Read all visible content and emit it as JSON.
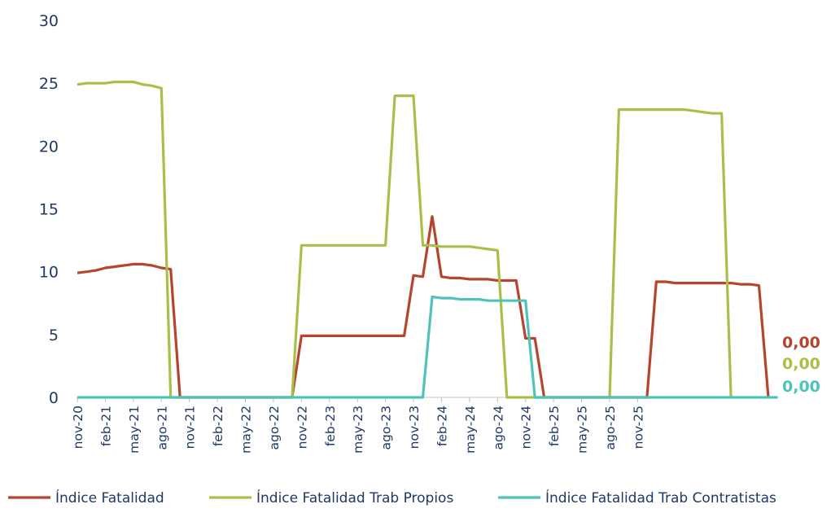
{
  "chart_data": {
    "type": "line",
    "xlabel": "",
    "ylabel": "",
    "ylim": [
      0,
      30
    ],
    "yticks": [
      "0",
      "5",
      "10",
      "15",
      "20",
      "25",
      "30"
    ],
    "x_start": "nov-20",
    "x_end": "nov-25",
    "xtick_labels": [
      "nov-20",
      "feb-21",
      "may-21",
      "ago-21",
      "nov-21",
      "feb-22",
      "may-22",
      "ago-22",
      "nov-22",
      "feb-23",
      "may-23",
      "ago-23",
      "nov-23",
      "feb-24",
      "may-24",
      "ago-24",
      "nov-24",
      "feb-25",
      "may-25",
      "ago-25",
      "nov-25"
    ],
    "grid": false,
    "legend_position": "bottom",
    "series": [
      {
        "name": "Índice Fatalidad",
        "color": "#b5452c",
        "values": [
          9.9,
          10.0,
          10.1,
          10.3,
          10.4,
          10.5,
          10.6,
          10.6,
          10.5,
          10.3,
          10.2,
          0,
          0,
          0,
          0,
          0,
          0,
          0,
          0,
          0,
          0,
          0,
          0,
          0,
          4.9,
          4.9,
          4.9,
          4.9,
          4.9,
          4.9,
          4.9,
          4.9,
          4.9,
          4.9,
          4.9,
          4.9,
          9.7,
          9.6,
          14.4,
          9.6,
          9.5,
          9.5,
          9.4,
          9.4,
          9.4,
          9.3,
          9.3,
          9.3,
          4.7,
          4.7,
          0,
          0,
          0,
          0,
          0,
          0,
          0,
          0,
          0,
          0,
          0,
          0,
          9.2,
          9.2,
          9.1,
          9.1,
          9.1,
          9.1,
          9.1,
          9.1,
          9.1,
          9.0,
          9.0,
          8.9,
          0
        ]
      },
      {
        "name": "Índice Fatalidad Trab Propios",
        "color": "#a8c04a",
        "values": [
          24.9,
          25.0,
          25.0,
          25.0,
          25.1,
          25.1,
          25.1,
          24.9,
          24.8,
          24.6,
          0,
          0,
          0,
          0,
          0,
          0,
          0,
          0,
          0,
          0,
          0,
          0,
          0,
          0,
          12.1,
          12.1,
          12.1,
          12.1,
          12.1,
          12.1,
          12.1,
          12.1,
          12.1,
          12.1,
          24.0,
          24.0,
          24.0,
          12.1,
          12.1,
          12.0,
          12.0,
          12.0,
          12.0,
          11.9,
          11.8,
          11.7,
          0,
          0,
          0,
          0,
          0,
          0,
          0,
          0,
          0,
          0,
          0,
          0,
          22.9,
          22.9,
          22.9,
          22.9,
          22.9,
          22.9,
          22.9,
          22.9,
          22.8,
          22.7,
          22.6,
          22.6,
          0
        ]
      },
      {
        "name": "Índice Fatalidad Trab Contratistas",
        "color": "#4fc3b9",
        "values": [
          0,
          0,
          0,
          0,
          0,
          0,
          0,
          0,
          0,
          0,
          0,
          0,
          0,
          0,
          0,
          0,
          0,
          0,
          0,
          0,
          0,
          0,
          0,
          0,
          0,
          0,
          0,
          0,
          0,
          0,
          0,
          0,
          0,
          0,
          0,
          0,
          0,
          0,
          8.0,
          7.9,
          7.9,
          7.8,
          7.8,
          7.8,
          7.7,
          7.7,
          7.7,
          7.7,
          7.7,
          0,
          0,
          0,
          0,
          0,
          0,
          0,
          0,
          0,
          0,
          0,
          0,
          0,
          0,
          0,
          0,
          0,
          0,
          0,
          0,
          0,
          0,
          0,
          0,
          0,
          0,
          0
        ]
      }
    ],
    "end_labels": [
      {
        "text": "0,00",
        "color": "#b5452c"
      },
      {
        "text": "0,00",
        "color": "#a8c04a"
      },
      {
        "text": "0,00",
        "color": "#4fc3b9"
      }
    ]
  }
}
